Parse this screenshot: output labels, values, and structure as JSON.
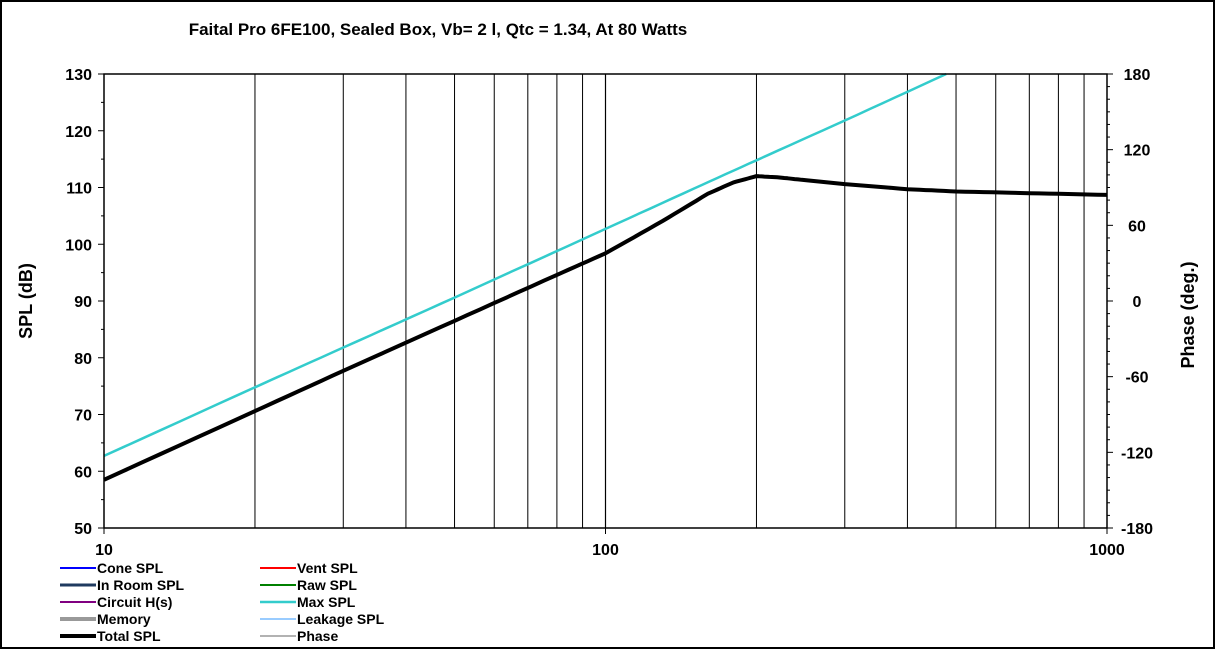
{
  "chart_data": {
    "type": "line",
    "title": "Faital Pro 6FE100,  Sealed Box, Vb= 2 l,  Qtc = 1.34,  At 80 Watts",
    "xlabel": "",
    "ylabel": "SPL (dB)",
    "y2label": "Phase (deg.)",
    "xscale": "log",
    "xlim": [
      10,
      1000
    ],
    "ylim": [
      50,
      130
    ],
    "y2lim": [
      -180,
      180
    ],
    "grid": true,
    "x_ticks": [
      "10",
      "100",
      "1000"
    ],
    "y_ticks": [
      "50",
      "60",
      "70",
      "80",
      "90",
      "100",
      "110",
      "120",
      "130"
    ],
    "y2_ticks": [
      "-180",
      "-120",
      "-60",
      "0",
      "60",
      "120",
      "180"
    ],
    "legend_position": "bottom-left",
    "legend": [
      {
        "label": "Cone SPL",
        "color": "#0000ff",
        "width": 2
      },
      {
        "label": "Vent SPL",
        "color": "#ff0000",
        "width": 2
      },
      {
        "label": "In Room SPL",
        "color": "#1f3a5f",
        "width": 3
      },
      {
        "label": "Raw SPL",
        "color": "#008000",
        "width": 2
      },
      {
        "label": "Circuit H(s)",
        "color": "#800080",
        "width": 2
      },
      {
        "label": "Max SPL",
        "color": "#33cccc",
        "width": 2.5
      },
      {
        "label": "Memory",
        "color": "#999999",
        "width": 4
      },
      {
        "label": "Leakage SPL",
        "color": "#3399ff",
        "width": 1
      },
      {
        "label": "Total SPL",
        "color": "#000000",
        "width": 4
      },
      {
        "label": "Phase",
        "color": "#999999",
        "width": 1.5
      }
    ],
    "series": [
      {
        "name": "Max SPL",
        "color": "#33cccc",
        "x": [
          10,
          20,
          30,
          50,
          100,
          150,
          200,
          300,
          478
        ],
        "y": [
          62.7,
          74.8,
          81.8,
          90.6,
          102.7,
          109.8,
          114.8,
          121.8,
          130
        ]
      },
      {
        "name": "Total SPL",
        "color": "#000000",
        "x": [
          10,
          20,
          30,
          50,
          80,
          100,
          130,
          160,
          180,
          200,
          220,
          250,
          300,
          400,
          500,
          700,
          1000
        ],
        "y": [
          58.5,
          70.6,
          77.7,
          86.5,
          94.6,
          98.4,
          104.1,
          108.9,
          110.9,
          112.0,
          111.8,
          111.3,
          110.6,
          109.7,
          109.3,
          109.0,
          108.7
        ]
      }
    ]
  }
}
